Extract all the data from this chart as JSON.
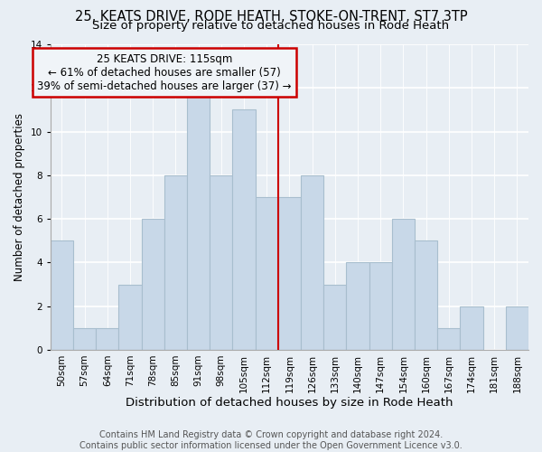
{
  "title_line1": "25, KEATS DRIVE, RODE HEATH, STOKE-ON-TRENT, ST7 3TP",
  "title_line2": "Size of property relative to detached houses in Rode Heath",
  "xlabel": "Distribution of detached houses by size in Rode Heath",
  "ylabel": "Number of detached properties",
  "bar_labels": [
    "50sqm",
    "57sqm",
    "64sqm",
    "71sqm",
    "78sqm",
    "85sqm",
    "91sqm",
    "98sqm",
    "105sqm",
    "112sqm",
    "119sqm",
    "126sqm",
    "133sqm",
    "140sqm",
    "147sqm",
    "154sqm",
    "160sqm",
    "167sqm",
    "174sqm",
    "181sqm",
    "188sqm"
  ],
  "bar_values": [
    5,
    1,
    1,
    3,
    6,
    8,
    12,
    8,
    11,
    7,
    7,
    8,
    3,
    4,
    4,
    6,
    5,
    1,
    2,
    0,
    2
  ],
  "bar_color": "#c8d8e8",
  "bar_edgecolor": "#a8bece",
  "bar_linewidth": 0.8,
  "vline_x_index": 9,
  "vline_color": "#cc0000",
  "vline_linewidth": 1.5,
  "ylim": [
    0,
    14
  ],
  "yticks": [
    0,
    2,
    4,
    6,
    8,
    10,
    12,
    14
  ],
  "annotation_title": "25 KEATS DRIVE: 115sqm",
  "annotation_line1": "← 61% of detached houses are smaller (57)",
  "annotation_line2": "39% of semi-detached houses are larger (37) →",
  "annotation_box_edgecolor": "#cc0000",
  "annotation_box_facecolor": "#f0f4f8",
  "footer_line1": "Contains HM Land Registry data © Crown copyright and database right 2024.",
  "footer_line2": "Contains public sector information licensed under the Open Government Licence v3.0.",
  "background_color": "#e8eef4",
  "grid_color": "#ffffff",
  "title_fontsize": 10.5,
  "subtitle_fontsize": 9.5,
  "xlabel_fontsize": 9.5,
  "ylabel_fontsize": 8.5,
  "tick_fontsize": 7.5,
  "annotation_fontsize": 8.5,
  "footer_fontsize": 7.0
}
